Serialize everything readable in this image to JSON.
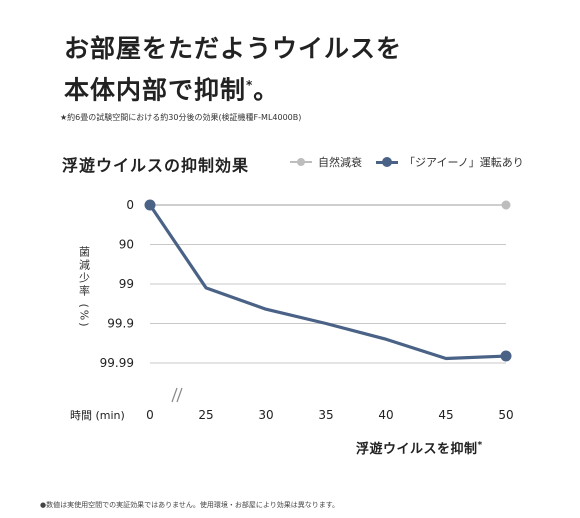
{
  "headline": {
    "line1": "お部屋をただようウイルスを",
    "line2": "本体内部で抑制",
    "line2_mark": "*",
    "line2_end": "。"
  },
  "note_top": "★約6畳の試験空間における約30分後の効果(検証機種F-ML4000B)",
  "note_bottom": "●数値は実使用空間での実証効果ではありません。使用環境・お部屋により効果は異なります。",
  "bottom_caption": {
    "text": "浮遊ウイルスを抑制",
    "mark": "*"
  },
  "colors": {
    "natural": "#bdbdbd",
    "ziaino": "#4a6286",
    "grid": "#c8c8c8",
    "text": "#222222"
  },
  "chart_data": {
    "type": "line",
    "title": "浮遊ウイルスの抑制効果",
    "ylabel": "菌減少率 (%)",
    "xlabel": "時間 (min)",
    "x_ticks": [
      0,
      25,
      30,
      35,
      40,
      45,
      50
    ],
    "x_axis_break": "between 0 and 25",
    "y_ticks": [
      "0",
      "90",
      "99",
      "99.9",
      "99.99"
    ],
    "y_scale": "log-reduction",
    "y_inverted": true,
    "grid": true,
    "legend_position": "top-right",
    "series": [
      {
        "name": "自然減衰",
        "color": "#bdbdbd",
        "points": [
          {
            "x": 0,
            "y": 0
          },
          {
            "x": 50,
            "y": 0
          }
        ]
      },
      {
        "name": "「ジアイーノ」運転あり",
        "color": "#4a6286",
        "points": [
          {
            "x": 0,
            "y": 0
          },
          {
            "x": 25,
            "y": 99.2
          },
          {
            "x": 30,
            "y": 99.77
          },
          {
            "x": 35,
            "y": 99.9
          },
          {
            "x": 40,
            "y": 99.96
          },
          {
            "x": 45,
            "y": 99.987
          },
          {
            "x": 50,
            "y": 99.985
          }
        ]
      }
    ]
  }
}
